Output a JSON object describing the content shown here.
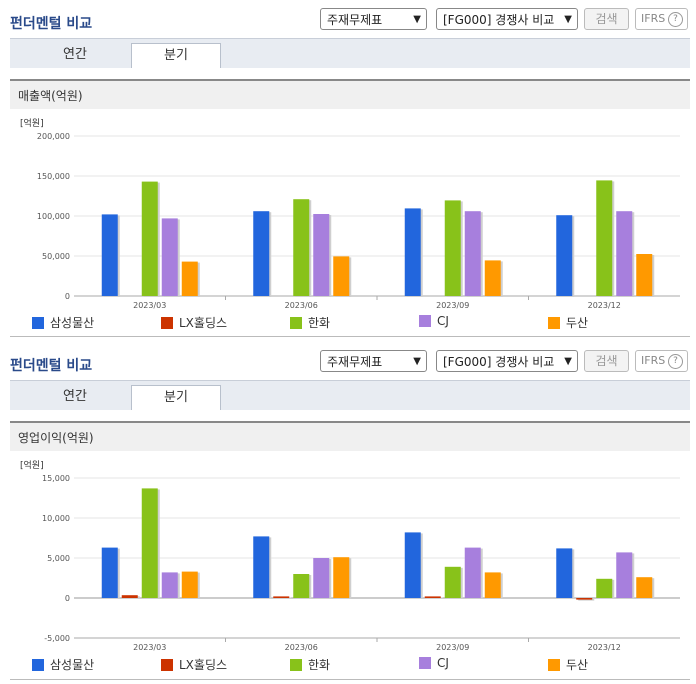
{
  "panels": [
    {
      "title": "펀더멘털 비교",
      "select1": "주재무제표",
      "select2": "[FG000] 경쟁사 비교",
      "search_btn": "검색",
      "ifrs": "IFRS",
      "tabs": [
        "연간",
        "분기"
      ],
      "active_tab": 1,
      "metric_label": "매출액(억원)"
    },
    {
      "title": "펀더멘털 비교",
      "select1": "주재무제표",
      "select2": "[FG000] 경쟁사 비교",
      "search_btn": "검색",
      "ifrs": "IFRS",
      "tabs": [
        "연간",
        "분기"
      ],
      "active_tab": 1,
      "metric_label": "영업이익(억원)"
    }
  ],
  "legend_colors": [
    "#2266dd",
    "#cc3300",
    "#88c21a",
    "#a77fdd",
    "#ff9900"
  ],
  "chart_data": [
    {
      "type": "bar",
      "unit": "[억원]",
      "categories": [
        "2023/03",
        "2023/06",
        "2023/09",
        "2023/12"
      ],
      "ylim": [
        0,
        200000
      ],
      "yticks": [
        "200,000",
        "150,000",
        "100,000",
        "50,000",
        "0"
      ],
      "series": [
        {
          "name": "삼성물산",
          "values": [
            102000,
            106000,
            109500,
            101000
          ]
        },
        {
          "name": "LX홀딩스",
          "values": [
            0,
            0,
            0,
            0
          ]
        },
        {
          "name": "한화",
          "values": [
            143000,
            121000,
            119500,
            144500
          ]
        },
        {
          "name": "CJ",
          "values": [
            97000,
            102500,
            106000,
            106000
          ]
        },
        {
          "name": "두산",
          "values": [
            43000,
            49500,
            44500,
            52500
          ]
        }
      ]
    },
    {
      "type": "bar",
      "unit": "[억원]",
      "categories": [
        "2023/03",
        "2023/06",
        "2023/09",
        "2023/12"
      ],
      "ylim": [
        -5000,
        15000
      ],
      "yticks": [
        "15,000",
        "10,000",
        "5,000",
        "0",
        "-5,000"
      ],
      "series": [
        {
          "name": "삼성물산",
          "values": [
            6300,
            7700,
            8200,
            6200
          ]
        },
        {
          "name": "LX홀딩스",
          "values": [
            350,
            200,
            200,
            -200
          ]
        },
        {
          "name": "한화",
          "values": [
            13700,
            3000,
            3900,
            2400
          ]
        },
        {
          "name": "CJ",
          "values": [
            3200,
            5000,
            6300,
            5700
          ]
        },
        {
          "name": "두산",
          "values": [
            3300,
            5100,
            3200,
            2600
          ]
        }
      ]
    }
  ]
}
